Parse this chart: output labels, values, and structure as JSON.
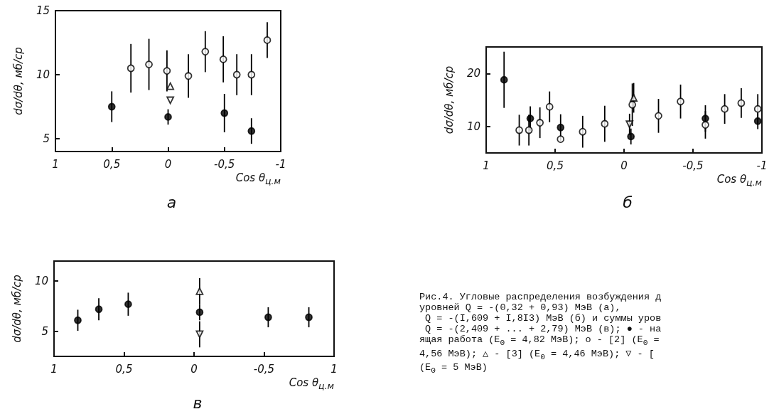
{
  "chart_data": [
    {
      "type": "scatter",
      "title": "а",
      "xlabel": "Cos θ$_{ц.м}$",
      "ylabel": "dσ/dθ, мб/ср",
      "xlim": [
        1,
        -1
      ],
      "ylim": [
        4,
        15
      ],
      "xticks": [
        1,
        {
          "value": 0.5,
          "label": "0,5"
        },
        0,
        {
          "value": -0.5,
          "label": "-0,5"
        },
        -1
      ],
      "yticks": [
        5,
        10,
        15
      ],
      "grid": false,
      "series": [
        {
          "marker": "circle",
          "color": "#000000",
          "x": [
            0.5,
            0,
            -0.5,
            -0.74
          ],
          "values": [
            7.5,
            6.7,
            7.0,
            5.6
          ],
          "errors": [
            1.2,
            0.6,
            1.5,
            1.0
          ]
        },
        {
          "marker": "circle-open",
          "color": "#000000",
          "x": [
            0.33,
            0.17,
            0.01,
            -0.18,
            -0.33,
            -0.49,
            -0.61,
            -0.74,
            -0.88
          ],
          "values": [
            10.5,
            10.8,
            10.3,
            9.9,
            11.8,
            11.2,
            10.0,
            10.0,
            12.7
          ],
          "errors": [
            1.9,
            2.0,
            1.6,
            1.7,
            1.6,
            1.8,
            1.6,
            1.6,
            1.4
          ]
        },
        {
          "marker": "triangle-open",
          "color": "#000000",
          "x": [
            -0.02
          ],
          "values": [
            9.1
          ]
        },
        {
          "marker": "triangle-down-open",
          "color": "#000000",
          "x": [
            -0.02
          ],
          "values": [
            8.0
          ]
        }
      ]
    },
    {
      "type": "scatter",
      "title": "б",
      "xlabel": "Cos θ$_{ц.м}$",
      "ylabel": "dσ/dθ, мб/ср",
      "xlim": [
        1,
        -1
      ],
      "ylim": [
        5,
        25
      ],
      "xticks": [
        1,
        {
          "value": 0.5,
          "label": "0,5"
        },
        0,
        {
          "value": -0.5,
          "label": "-0,5"
        },
        -1
      ],
      "yticks": [
        10,
        20
      ],
      "grid": false,
      "series": [
        {
          "marker": "circle",
          "color": "#000000",
          "x": [
            0.87,
            0.68,
            0.46,
            -0.05,
            -0.59,
            -0.97
          ],
          "values": [
            18.8,
            11.5,
            9.8,
            8.1,
            11.5,
            11.0
          ],
          "errors": [
            5.3,
            2.3,
            2.5,
            1.5,
            2.5,
            1.5
          ]
        },
        {
          "marker": "circle-open",
          "color": "#000000",
          "x": [
            0.76,
            0.69,
            0.61,
            0.54,
            0.46,
            0.3,
            0.14,
            -0.06,
            -0.25,
            -0.41,
            -0.59,
            -0.73,
            -0.85,
            -0.97
          ],
          "values": [
            9.3,
            9.3,
            10.7,
            13.7,
            7.6,
            9.0,
            10.5,
            14.1,
            12.0,
            14.7,
            10.3,
            13.3,
            14.4,
            13.3
          ],
          "errors": [
            2.9,
            2.9,
            2.9,
            2.9,
            null,
            3.0,
            3.4,
            4.0,
            3.2,
            3.2,
            2.6,
            2.8,
            2.8,
            2.8
          ]
        },
        {
          "marker": "triangle-open",
          "color": "#000000",
          "x": [
            -0.07
          ],
          "values": [
            15.4
          ],
          "errors": [
            2.8
          ]
        },
        {
          "marker": "triangle-down-open",
          "color": "#000000",
          "x": [
            -0.04
          ],
          "values": [
            10.4
          ],
          "errors": [
            2.0
          ]
        }
      ]
    },
    {
      "type": "scatter",
      "title": "в",
      "xlabel": "Cos θ$_{ц.м}$",
      "ylabel": "dσ/dθ, мб/ср",
      "xlim": [
        1,
        -1
      ],
      "ylim": [
        2.5,
        12
      ],
      "xticks": [
        1,
        {
          "value": 0.5,
          "label": "0,5"
        },
        0,
        {
          "value": -0.5,
          "label": "-0,5"
        },
        {
          "value": -1,
          "label": "1"
        }
      ],
      "yticks": [
        5,
        10
      ],
      "grid": false,
      "annotations": [
        "Рис.4. Угловые распределения возбуждения д\nуровней Q = -(0,32 + 0,93) МэВ (а),\n Q = -(I,609 + I,8I3) МэВ (б) и суммы уров\n Q = -(2,409 + ... + 2,79) МэВ (в); ● - на\nящая работа (E$_{0}$ = 4,82 МэВ); o - [2] (E$_{0}$ =\n4,56 МэВ); △ - [3] (E$_{0}$ = 4,46 МэВ); ▽ - [\n(E$_{0}$ = 5 МэВ)"
      ],
      "series": [
        {
          "marker": "circle",
          "color": "#000000",
          "x": [
            0.83,
            0.68,
            0.47,
            -0.04,
            -0.53,
            -0.82
          ],
          "values": [
            6.1,
            7.2,
            7.7,
            6.9,
            6.4,
            6.4
          ],
          "errors": [
            1.05,
            1.1,
            1.15,
            0.8,
            1.0,
            1.0
          ]
        },
        {
          "marker": "triangle-open",
          "color": "#000000",
          "x": [
            -0.04
          ],
          "values": [
            9.0
          ],
          "errors": [
            1.3
          ]
        },
        {
          "marker": "triangle-down-open",
          "color": "#000000",
          "x": [
            -0.04
          ],
          "values": [
            4.7
          ],
          "errors": [
            1.3
          ]
        }
      ]
    }
  ]
}
